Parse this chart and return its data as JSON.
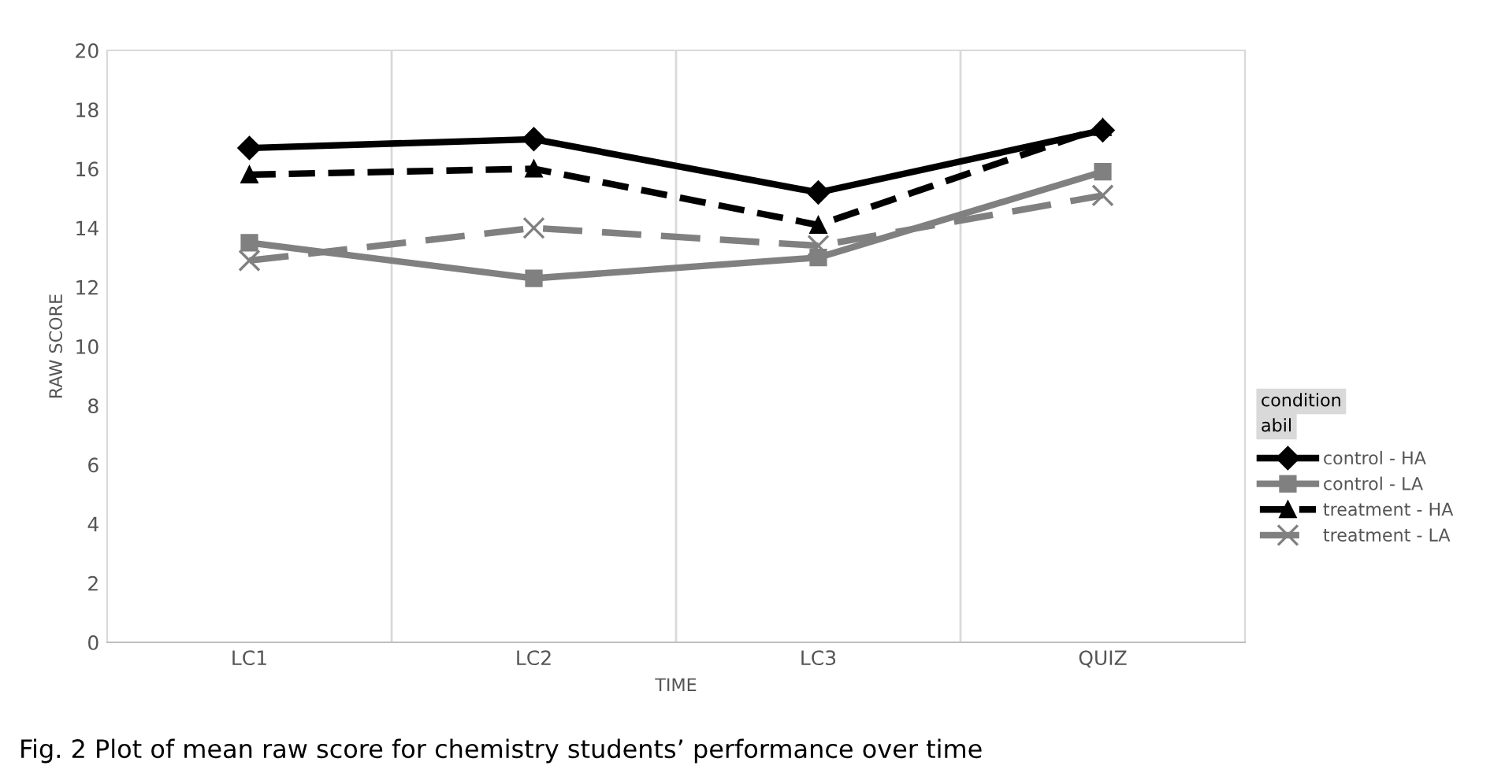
{
  "chart_data": {
    "type": "line",
    "xlabel": "TIME",
    "ylabel": "RAW SCORE",
    "categories": [
      "LC1",
      "LC2",
      "LC3",
      "QUIZ"
    ],
    "series": [
      {
        "name": "control - HA",
        "color": "#000000",
        "values": [
          16.7,
          17.0,
          15.2,
          17.3
        ],
        "marker": "diamond",
        "line_style": "solid"
      },
      {
        "name": "control - LA",
        "color": "#808080",
        "values": [
          13.5,
          12.3,
          13.0,
          15.9
        ],
        "marker": "square",
        "line_style": "solid"
      },
      {
        "name": "treatment - HA",
        "color": "#000000",
        "values": [
          15.8,
          16.0,
          14.1,
          17.4
        ],
        "marker": "triangle",
        "line_style": "dashed"
      },
      {
        "name": "treatment - LA",
        "color": "#808080",
        "values": [
          12.9,
          14.0,
          13.4,
          15.1
        ],
        "marker": "cross",
        "line_style": "dashed"
      }
    ],
    "ylim": [
      0,
      20
    ],
    "yticks": [
      0,
      2,
      4,
      6,
      8,
      10,
      12,
      14,
      16,
      18,
      20
    ],
    "grid": "x",
    "legend": "right",
    "annotations": [
      "condition",
      "abil",
      "Fig. 2 Plot of mean raw score for chemistry students’ performance over time"
    ]
  }
}
